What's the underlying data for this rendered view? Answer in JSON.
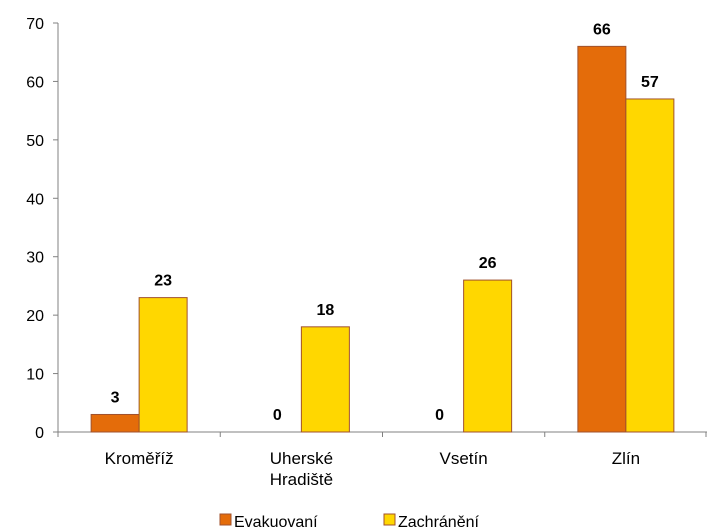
{
  "chart_data": {
    "type": "bar",
    "title": "",
    "xlabel": "",
    "ylabel": "",
    "categories": [
      [
        "Kroměříž"
      ],
      [
        "Uherské",
        "Hradiště"
      ],
      [
        "Vsetín"
      ],
      [
        "Zlín"
      ]
    ],
    "series": [
      {
        "name": "Evakuovaní",
        "values": [
          3,
          0,
          0,
          66
        ],
        "color": "#E46C0A"
      },
      {
        "name": "Zachránění",
        "values": [
          23,
          18,
          26,
          57
        ],
        "color": "#FFD700"
      }
    ],
    "ylim": [
      0,
      70
    ],
    "yticks": [
      0,
      10,
      20,
      30,
      40,
      50,
      60,
      70
    ],
    "grid": false,
    "legend": "bottom",
    "bar_edge_color": "#A0522D",
    "data_labels": true
  }
}
